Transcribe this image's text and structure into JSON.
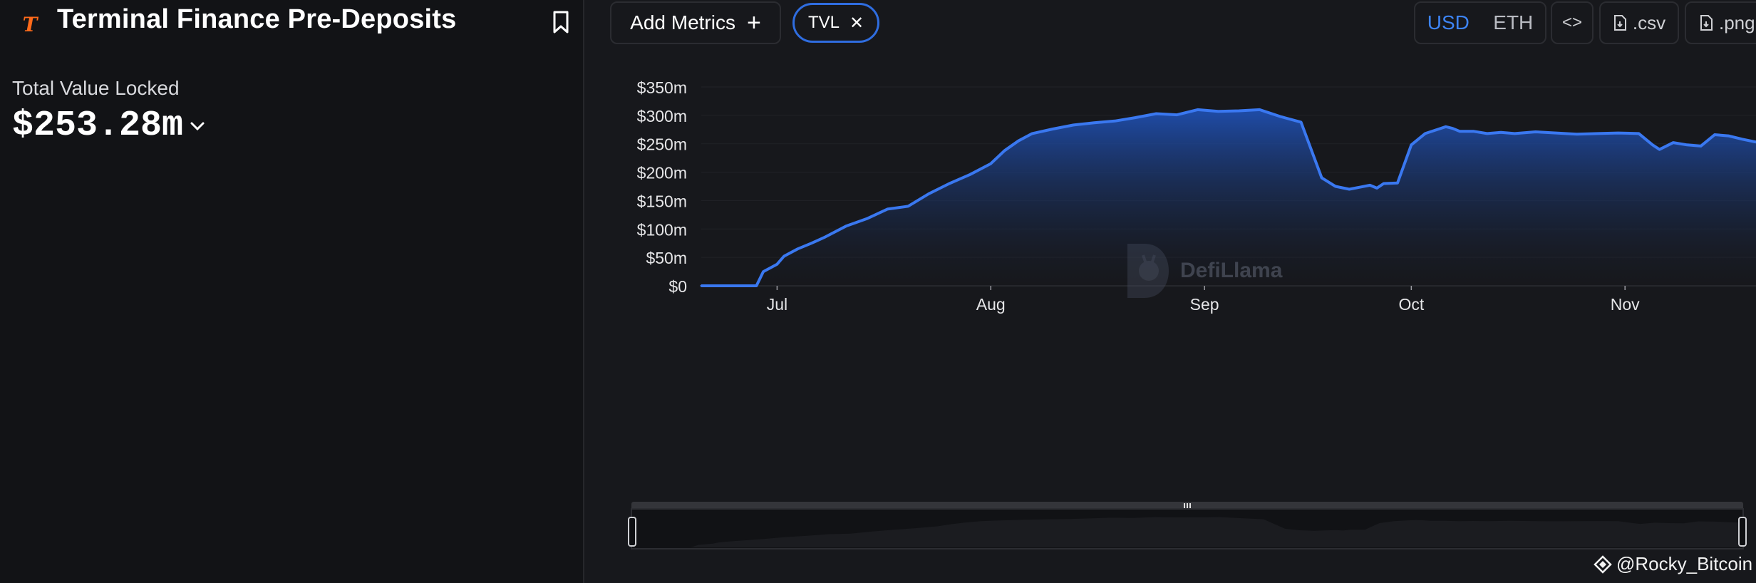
{
  "header": {
    "logo_glyph": "T",
    "title": "Terminal Finance Pre-Deposits",
    "accent_color": "#ff6a1a"
  },
  "summary": {
    "tvl_label": "Total Value Locked",
    "tvl_value": "$253.28m"
  },
  "toolbar": {
    "add_metrics_label": "Add Metrics",
    "add_icon": "+",
    "metric_pill_label": "TVL",
    "remove_icon": "✕",
    "currency_usd": "USD",
    "currency_eth": "ETH",
    "currency_selected": "USD",
    "embed_label": "<>",
    "csv_label": ".csv",
    "png_label": ".png"
  },
  "watermark": {
    "text": "DefiLlama"
  },
  "credit": {
    "text": "@Rocky_Bitcoin"
  },
  "colors": {
    "line": "#3a78f0",
    "fill_top": "#1f4fb0",
    "background": "#17181c"
  },
  "chart_data": {
    "type": "area",
    "title": "",
    "xlabel": "",
    "ylabel": "",
    "ylim": [
      0,
      350
    ],
    "yticks": [
      "$0",
      "$50m",
      "$100m",
      "$150m",
      "$200m",
      "$250m",
      "$300m",
      "$350m"
    ],
    "yticks_values": [
      0,
      50,
      100,
      150,
      200,
      250,
      300,
      350
    ],
    "xtick_labels": [
      "Jul",
      "Aug",
      "Sep",
      "Oct",
      "Nov"
    ],
    "xtick_dates": [
      "2025-07-01",
      "2025-08-01",
      "2025-09-01",
      "2025-10-01",
      "2025-11-01"
    ],
    "grid": true,
    "series": [
      {
        "unit": "USD millions",
        "x": [
          "2025-06-20",
          "2025-06-24",
          "2025-06-28",
          "2025-06-29",
          "2025-07-01",
          "2025-07-02",
          "2025-07-04",
          "2025-07-06",
          "2025-07-08",
          "2025-07-11",
          "2025-07-14",
          "2025-07-17",
          "2025-07-20",
          "2025-07-23",
          "2025-07-26",
          "2025-07-29",
          "2025-08-01",
          "2025-08-03",
          "2025-08-05",
          "2025-08-07",
          "2025-08-10",
          "2025-08-13",
          "2025-08-16",
          "2025-08-19",
          "2025-08-22",
          "2025-08-25",
          "2025-08-28",
          "2025-08-31",
          "2025-09-03",
          "2025-09-06",
          "2025-09-09",
          "2025-09-12",
          "2025-09-15",
          "2025-09-18",
          "2025-09-20",
          "2025-09-22",
          "2025-09-25",
          "2025-09-26",
          "2025-09-27",
          "2025-09-29",
          "2025-10-01",
          "2025-10-03",
          "2025-10-05",
          "2025-10-06",
          "2025-10-07",
          "2025-10-08",
          "2025-10-10",
          "2025-10-12",
          "2025-10-14",
          "2025-10-16",
          "2025-10-19",
          "2025-10-22",
          "2025-10-25",
          "2025-10-28",
          "2025-10-31",
          "2025-11-03",
          "2025-11-05",
          "2025-11-06",
          "2025-11-08",
          "2025-11-10",
          "2025-11-12",
          "2025-11-14",
          "2025-11-16",
          "2025-11-18",
          "2025-11-20"
        ],
        "values": [
          0,
          0,
          0,
          25,
          38,
          52,
          65,
          75,
          86,
          105,
          118,
          135,
          140,
          162,
          180,
          196,
          215,
          238,
          255,
          268,
          276,
          283,
          287,
          290,
          296,
          303,
          301,
          310,
          307,
          308,
          310,
          298,
          288,
          190,
          175,
          170,
          177,
          172,
          180,
          181,
          248,
          268,
          276,
          280,
          277,
          272,
          272,
          268,
          270,
          268,
          271,
          269,
          267,
          268,
          269,
          268,
          248,
          240,
          252,
          248,
          246,
          266,
          264,
          258,
          253
        ]
      }
    ]
  }
}
